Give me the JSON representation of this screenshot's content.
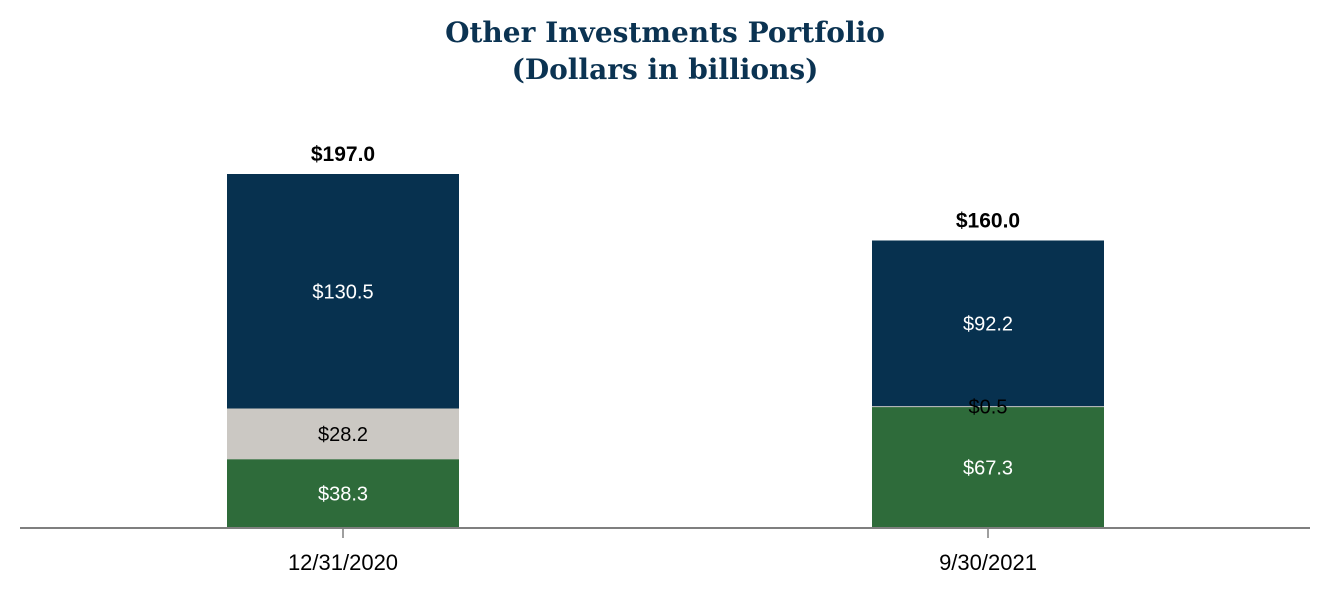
{
  "chart_data": {
    "type": "bar",
    "stacked": true,
    "title": "Other Investments Portfolio",
    "subtitle": "(Dollars in billions)",
    "categories": [
      "12/31/2020",
      "9/30/2021"
    ],
    "series": [
      {
        "values": [
          38.3,
          67.3
        ],
        "labels": [
          "$38.3",
          "$67.3"
        ],
        "color": "#2e6b3a",
        "label_color": "#ffffff"
      },
      {
        "values": [
          28.2,
          0.5
        ],
        "labels": [
          "$28.2",
          "$0.5"
        ],
        "color": "#cbc8c3",
        "label_color": "#000000"
      },
      {
        "values": [
          130.5,
          92.2
        ],
        "labels": [
          "$130.5",
          "$92.2"
        ],
        "color": "#07314f",
        "label_color": "#ffffff"
      }
    ],
    "totals": [
      197.0,
      160.0
    ],
    "total_labels": [
      "$197.0",
      "$160.0"
    ],
    "ylim": [
      0,
      197.0
    ],
    "grid": false,
    "legend": "none"
  }
}
